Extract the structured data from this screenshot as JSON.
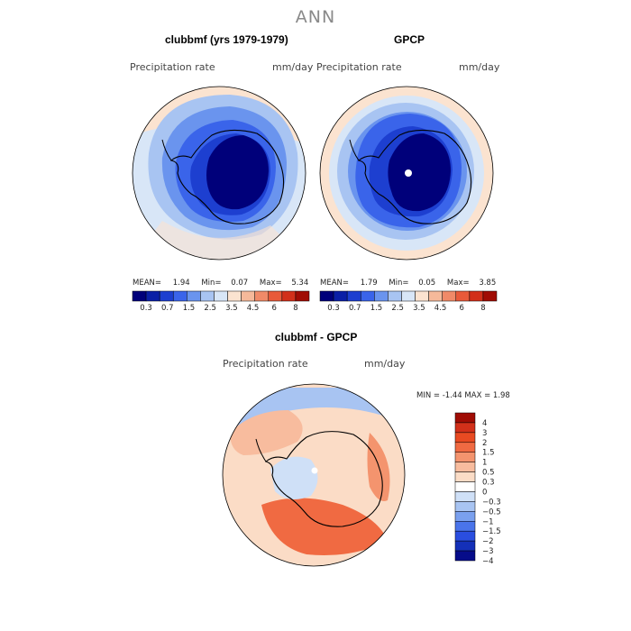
{
  "suptitle": "ANN",
  "panels": {
    "model": {
      "title": "clubbmf (yrs 1979-1979)",
      "var_label": "Precipitation rate",
      "units": "mm/day",
      "stats": {
        "mean_label": "MEAN=",
        "mean": "1.94",
        "min_label": "Min=",
        "min": "0.07",
        "max_label": "Max=",
        "max": "5.34"
      }
    },
    "obs": {
      "title": "GPCP",
      "var_label": "Precipitation rate",
      "units": "mm/day",
      "stats": {
        "mean_label": "MEAN=",
        "mean": "1.79",
        "min_label": "Min=",
        "min": "0.05",
        "max_label": "Max=",
        "max": "3.85"
      }
    },
    "diff": {
      "title": "clubbmf - GPCP",
      "var_label": "Precipitation rate",
      "units": "mm/day",
      "stats_text": "MIN =   -1.44  MAX =    1.98"
    }
  },
  "colorbar_abs": {
    "colors": [
      "#00007a",
      "#0a1fa6",
      "#1d3fd0",
      "#3a64ea",
      "#6a94ee",
      "#a8c4f2",
      "#d8e6f7",
      "#fbe3d0",
      "#f5b99a",
      "#f08a68",
      "#e85a3a",
      "#d2301a",
      "#a00c04"
    ],
    "tick_labels": [
      "0.3",
      "0.7",
      "1.5",
      "2.5",
      "3.5",
      "4.5",
      "6",
      "8"
    ]
  },
  "colorbar_diff": {
    "colors": [
      "#a00c04",
      "#d2301a",
      "#e84a22",
      "#f06a42",
      "#f4946e",
      "#f8bc9e",
      "#fbdcc6",
      "#ffffff",
      "#cfe0f7",
      "#a8c4f2",
      "#7aa0ee",
      "#4a74ea",
      "#2a4ee0",
      "#1430b8",
      "#060c8a"
    ],
    "tick_labels": [
      "4",
      "3",
      "2",
      "1.5",
      "1",
      "0.5",
      "0.3",
      "0",
      "−0.3",
      "−0.5",
      "−1",
      "−1.5",
      "−2",
      "−3",
      "−4"
    ]
  }
}
